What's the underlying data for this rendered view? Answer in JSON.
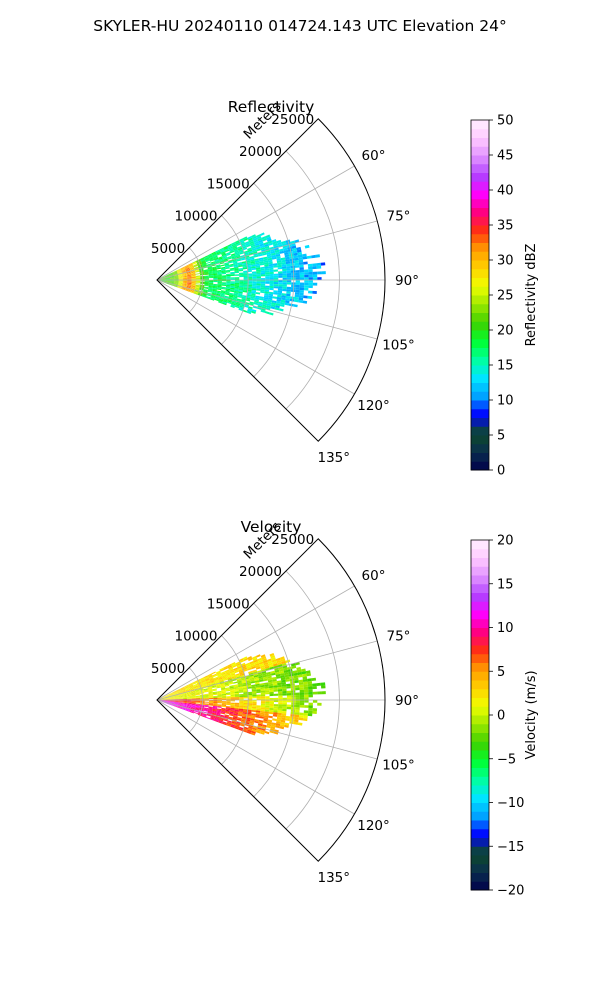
{
  "suptitle": "SKYLER-HU  20240110  014724.143 UTC Elevation 24°",
  "chart_data": [
    {
      "type": "heatmap",
      "projection": "polar-sector",
      "title": "Reflectivity",
      "radial_label": "Meters",
      "radial_ticks": [
        "5000",
        "10000",
        "15000",
        "20000",
        "25000"
      ],
      "radial_tick_values": [
        5000,
        10000,
        15000,
        20000,
        25000
      ],
      "rlim": [
        0,
        25000
      ],
      "theta_ticks": [
        "60°",
        "75°",
        "90°",
        "105°",
        "120°",
        "135°"
      ],
      "theta_tick_values": [
        60,
        75,
        90,
        105,
        120,
        135
      ],
      "theta_range": [
        45,
        135
      ],
      "grid": true,
      "colorbar": {
        "label": "Reflectivity dBZ",
        "ticks": [
          "0",
          "5",
          "10",
          "15",
          "20",
          "25",
          "30",
          "35",
          "40",
          "45",
          "50"
        ],
        "range": [
          0,
          50
        ],
        "stops": [
          "#00004a",
          "#0a2f4e",
          "#0d4a2a",
          "#0000ff",
          "#00a0ff",
          "#00e5ff",
          "#00ffa0",
          "#00ff30",
          "#3fd000",
          "#9de800",
          "#f0ff00",
          "#ffd000",
          "#ff9a00",
          "#ff3010",
          "#ff0080",
          "#ff00ff",
          "#b040ff",
          "#e090ff",
          "#ffc8ff",
          "#fff0ff"
        ]
      },
      "data_extent": {
        "range_m": [
          0,
          19000
        ],
        "azimuth_deg": [
          64,
          110
        ]
      }
    },
    {
      "type": "heatmap",
      "projection": "polar-sector",
      "title": "Velocity",
      "radial_label": "Meters",
      "radial_ticks": [
        "5000",
        "10000",
        "15000",
        "20000",
        "25000"
      ],
      "radial_tick_values": [
        5000,
        10000,
        15000,
        20000,
        25000
      ],
      "rlim": [
        0,
        25000
      ],
      "theta_ticks": [
        "60°",
        "75°",
        "90°",
        "105°",
        "120°",
        "135°"
      ],
      "theta_tick_values": [
        60,
        75,
        90,
        105,
        120,
        135
      ],
      "theta_range": [
        45,
        135
      ],
      "grid": true,
      "colorbar": {
        "label": "Velocity (m/s)",
        "ticks": [
          "−20",
          "−15",
          "−10",
          "−5",
          "0",
          "5",
          "10",
          "15",
          "20"
        ],
        "range": [
          -20,
          20
        ],
        "stops": [
          "#00004a",
          "#0a2f4e",
          "#0d4a2a",
          "#0000ff",
          "#00a0ff",
          "#00e5ff",
          "#00ffa0",
          "#00ff30",
          "#3fd000",
          "#9de800",
          "#f0ff00",
          "#ffd000",
          "#ff9a00",
          "#ff3010",
          "#ff0080",
          "#ff00ff",
          "#b040ff",
          "#e090ff",
          "#ffc8ff",
          "#fff0ff"
        ]
      },
      "data_extent": {
        "range_m": [
          0,
          19000
        ],
        "azimuth_deg": [
          64,
          110
        ]
      }
    }
  ]
}
